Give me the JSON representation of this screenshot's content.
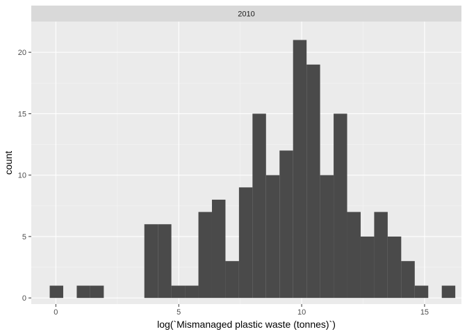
{
  "chart_data": {
    "type": "bar",
    "facet_label": "2010",
    "xlabel": "log(`Mismanaged plastic waste (tonnes)`)",
    "ylabel": "count",
    "xlim": [
      -1.0,
      16.5
    ],
    "ylim": [
      -0.5,
      22.5
    ],
    "x_ticks": [
      0,
      5,
      10,
      15
    ],
    "y_ticks": [
      0,
      5,
      10,
      15,
      20
    ],
    "bin_width": 0.55,
    "bins": [
      {
        "x0": -0.25,
        "count": 1
      },
      {
        "x0": 0.3,
        "count": 0
      },
      {
        "x0": 0.85,
        "count": 1
      },
      {
        "x0": 1.4,
        "count": 1
      },
      {
        "x0": 1.95,
        "count": 0
      },
      {
        "x0": 2.5,
        "count": 0
      },
      {
        "x0": 3.05,
        "count": 0
      },
      {
        "x0": 3.6,
        "count": 6
      },
      {
        "x0": 4.15,
        "count": 6
      },
      {
        "x0": 4.7,
        "count": 1
      },
      {
        "x0": 5.25,
        "count": 1
      },
      {
        "x0": 5.8,
        "count": 7
      },
      {
        "x0": 6.35,
        "count": 8
      },
      {
        "x0": 6.9,
        "count": 3
      },
      {
        "x0": 7.45,
        "count": 9
      },
      {
        "x0": 8.0,
        "count": 15
      },
      {
        "x0": 8.55,
        "count": 10
      },
      {
        "x0": 9.1,
        "count": 12
      },
      {
        "x0": 9.65,
        "count": 21
      },
      {
        "x0": 10.2,
        "count": 19
      },
      {
        "x0": 10.75,
        "count": 10
      },
      {
        "x0": 11.3,
        "count": 15
      },
      {
        "x0": 11.85,
        "count": 7
      },
      {
        "x0": 12.4,
        "count": 5
      },
      {
        "x0": 12.95,
        "count": 7
      },
      {
        "x0": 13.5,
        "count": 5
      },
      {
        "x0": 14.05,
        "count": 3
      },
      {
        "x0": 14.6,
        "count": 1
      },
      {
        "x0": 15.15,
        "count": 0
      },
      {
        "x0": 15.7,
        "count": 1
      }
    ],
    "grid": true,
    "bar_color": "#4a4a4a",
    "panel_bg": "#ebebeb",
    "strip_bg": "#d9d9d9"
  }
}
